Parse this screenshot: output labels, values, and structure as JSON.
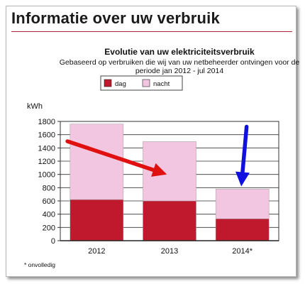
{
  "page": {
    "title": "Informatie over uw verbruik"
  },
  "chart_data": {
    "type": "bar",
    "stacked": true,
    "title": "Evolutie van uw elektriciteitsverbruik",
    "subtitle_lines": [
      "Gebaseerd op verbruiken die wij van uw netbeheerder ontvingen voor de",
      "periode jan 2012 - jul 2014"
    ],
    "ylabel": "kWh",
    "xlabel": "",
    "categories": [
      "2012",
      "2013",
      "2014*"
    ],
    "series": [
      {
        "name": "dag",
        "color": "#c0182d",
        "values": [
          620,
          600,
          330
        ]
      },
      {
        "name": "nacht",
        "color": "#f2c6e0",
        "values": [
          1140,
          895,
          450
        ]
      }
    ],
    "ylim": [
      0,
      1800
    ],
    "yticks": [
      "0",
      "200",
      "400",
      "600",
      "800",
      "1000",
      "1200",
      "1400",
      "1600",
      "1800"
    ],
    "grid": true,
    "legend_position": "top-center",
    "footnote": "* onvolledig",
    "arrows": [
      {
        "color": "#e01010",
        "from": {
          "category": "2012",
          "value": 1500
        },
        "to": {
          "category": "2013",
          "value": 1000
        }
      },
      {
        "color": "#1010e0",
        "from": {
          "category": "2014*",
          "value": 1720
        },
        "to": {
          "category": "2014*",
          "value": 820
        }
      }
    ]
  }
}
